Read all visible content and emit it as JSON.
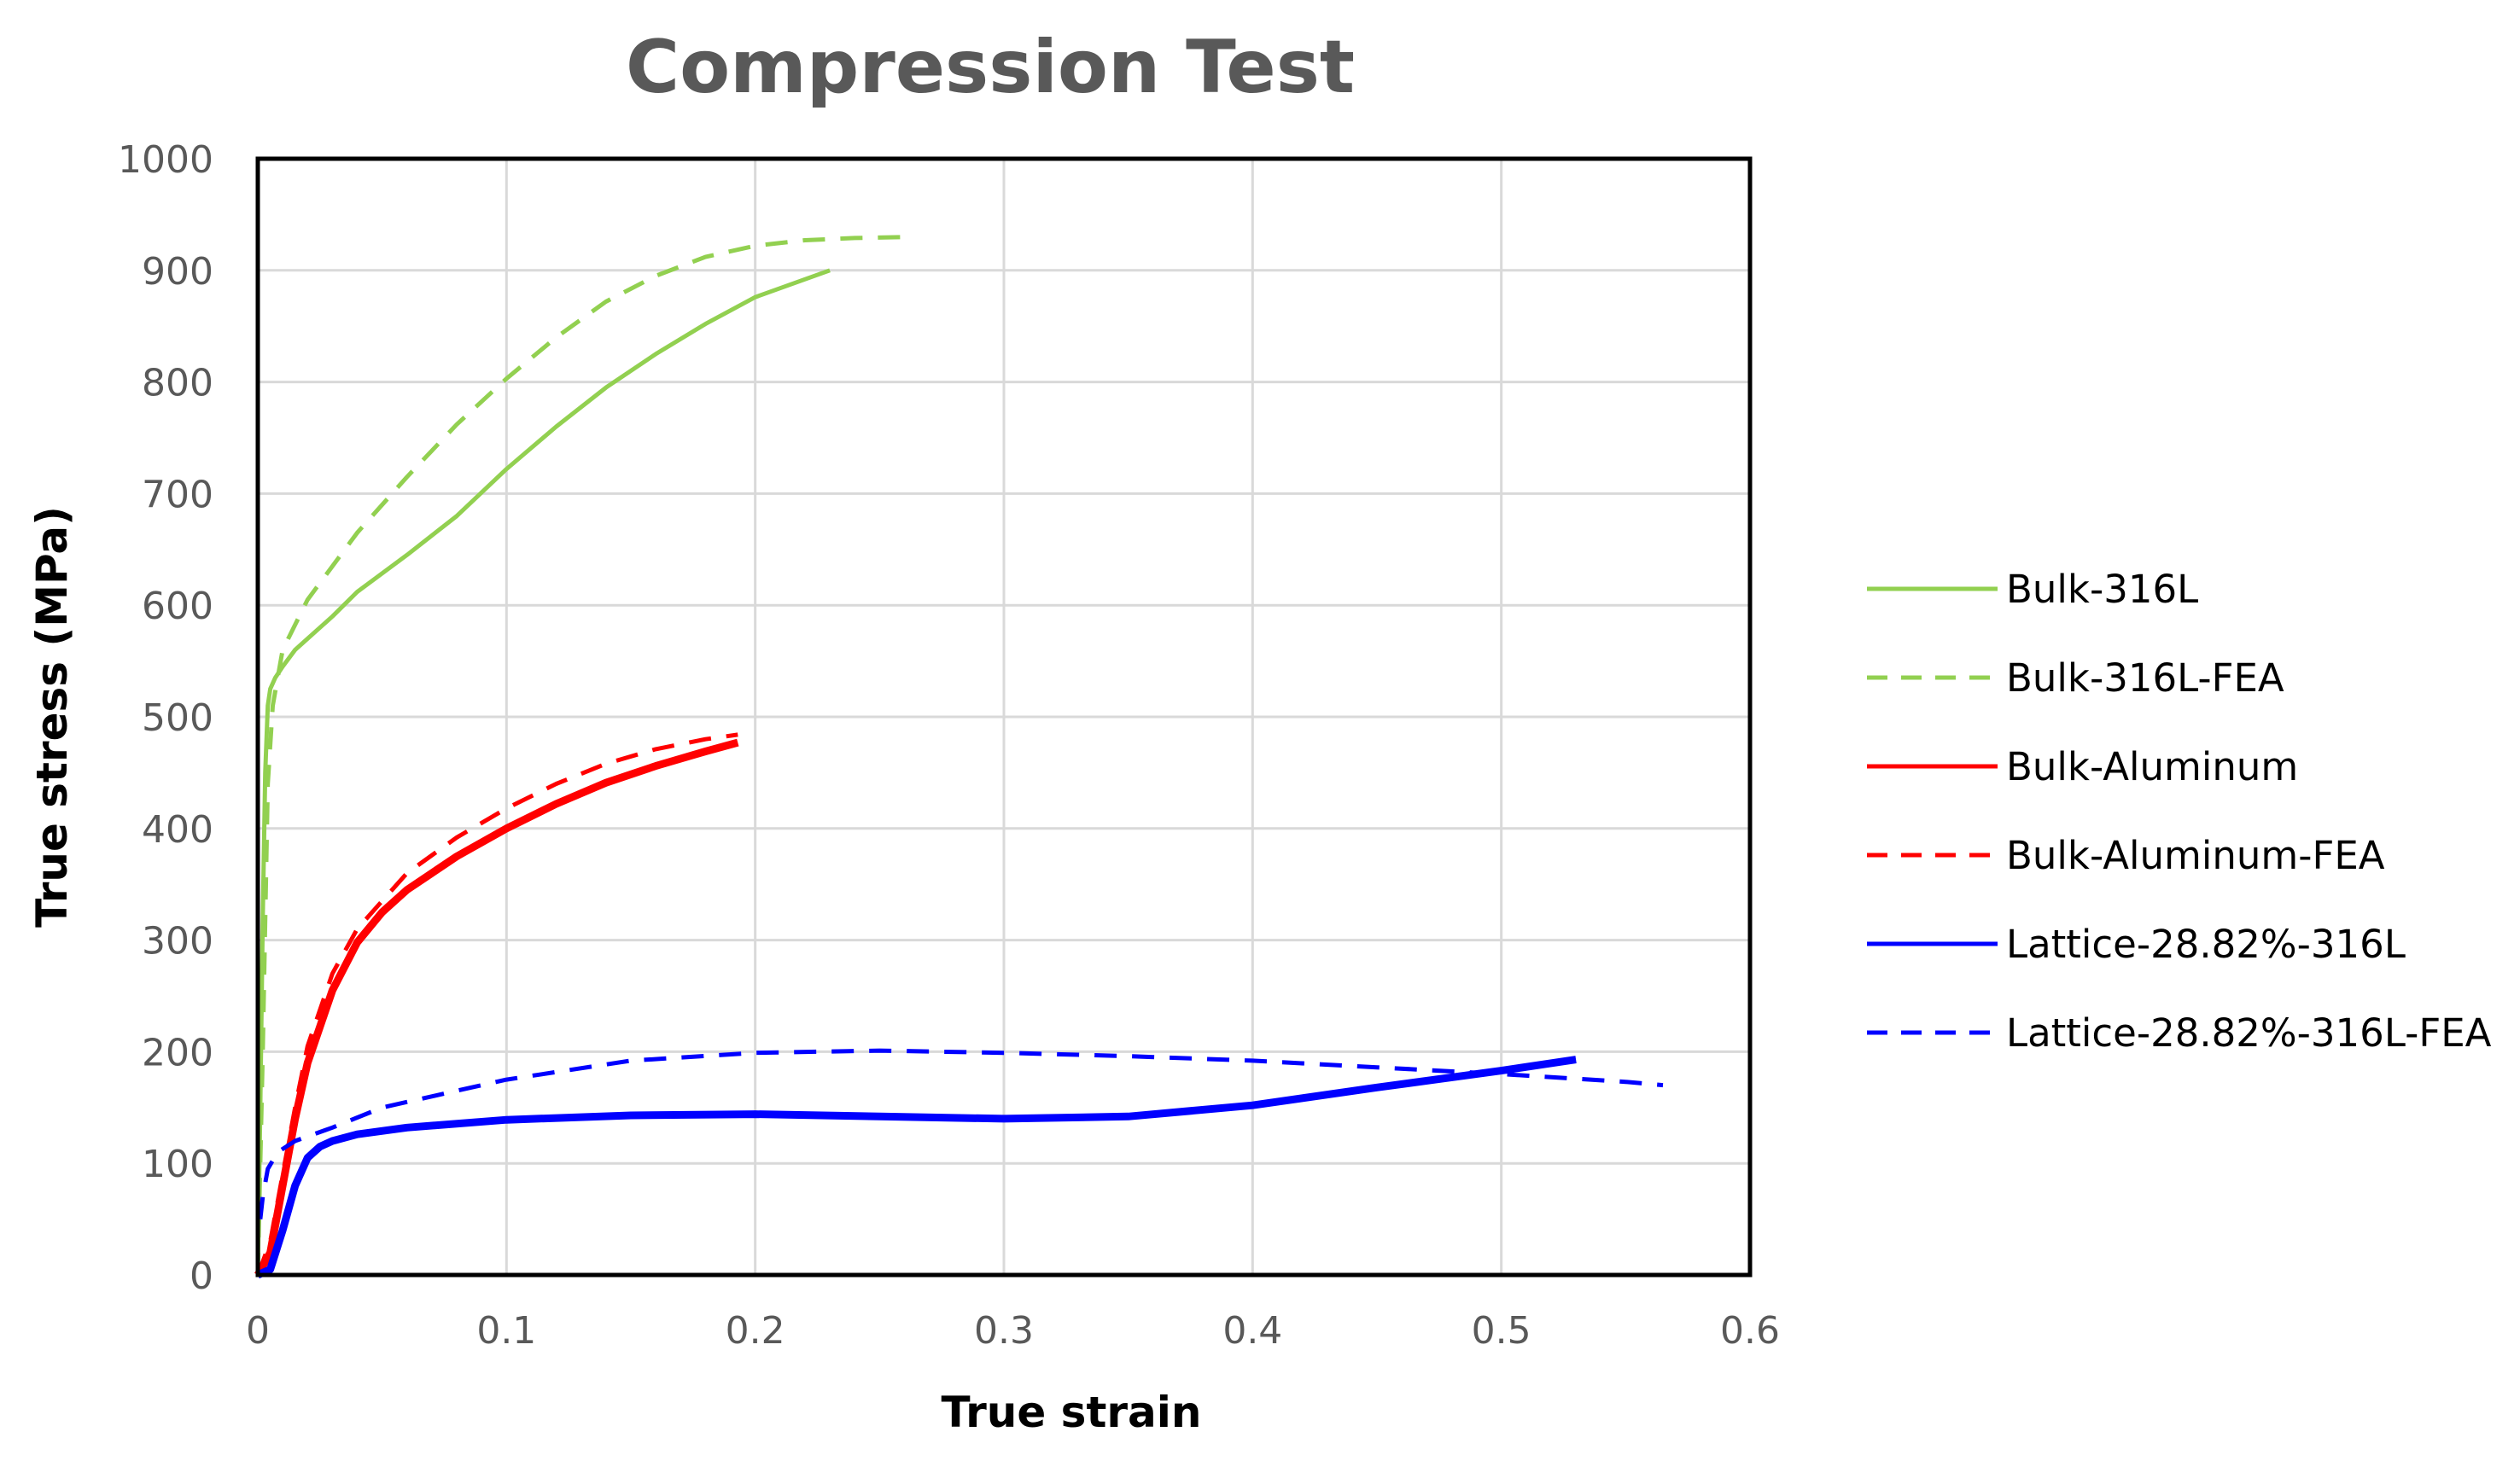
{
  "chart_data": {
    "type": "line",
    "title": "Compression Test",
    "xlabel": "True strain",
    "ylabel": "True stress (MPa)",
    "xlim": [
      0,
      0.6
    ],
    "ylim": [
      0,
      1000
    ],
    "x_ticks": [
      0,
      0.1,
      0.2,
      0.3,
      0.4,
      0.5,
      0.6
    ],
    "x_tick_labels": [
      "0",
      "0.1",
      "0.2",
      "0.3",
      "0.4",
      "0.5",
      "0.6"
    ],
    "y_ticks": [
      0,
      100,
      200,
      300,
      400,
      500,
      600,
      700,
      800,
      900,
      1000
    ],
    "y_tick_labels": [
      "0",
      "100",
      "200",
      "300",
      "400",
      "500",
      "600",
      "700",
      "800",
      "900",
      "1000"
    ],
    "grid": true,
    "legend_position": "right",
    "series": [
      {
        "name": "Bulk-316L",
        "color": "#92d050",
        "dash": "solid",
        "width": "normal",
        "x": [
          0,
          0.001,
          0.002,
          0.003,
          0.004,
          0.005,
          0.007,
          0.01,
          0.015,
          0.02,
          0.03,
          0.04,
          0.06,
          0.08,
          0.1,
          0.12,
          0.14,
          0.16,
          0.18,
          0.2,
          0.23
        ],
        "y": [
          0,
          150,
          320,
          450,
          510,
          525,
          535,
          545,
          560,
          570,
          590,
          612,
          645,
          680,
          722,
          760,
          795,
          825,
          852,
          876,
          900
        ]
      },
      {
        "name": "Bulk-316L-FEA",
        "color": "#92d050",
        "dash": "dashed",
        "width": "normal",
        "x": [
          0,
          0.002,
          0.004,
          0.006,
          0.01,
          0.02,
          0.04,
          0.06,
          0.08,
          0.1,
          0.12,
          0.14,
          0.16,
          0.18,
          0.2,
          0.22,
          0.24,
          0.262
        ],
        "y": [
          0,
          200,
          440,
          510,
          560,
          605,
          665,
          715,
          762,
          803,
          840,
          872,
          895,
          912,
          922,
          927,
          929,
          930
        ]
      },
      {
        "name": "Bulk-Aluminum",
        "color": "#ff0000",
        "dash": "solid",
        "width": "thick",
        "x": [
          0,
          0.005,
          0.01,
          0.015,
          0.02,
          0.03,
          0.04,
          0.05,
          0.06,
          0.08,
          0.1,
          0.12,
          0.14,
          0.16,
          0.18,
          0.193
        ],
        "y": [
          0,
          20,
          80,
          140,
          190,
          255,
          298,
          325,
          345,
          375,
          400,
          422,
          441,
          456,
          469,
          477
        ]
      },
      {
        "name": "Bulk-Aluminum-FEA",
        "color": "#ff0000",
        "dash": "dashed",
        "width": "normal",
        "x": [
          0,
          0.005,
          0.01,
          0.015,
          0.02,
          0.03,
          0.04,
          0.06,
          0.08,
          0.1,
          0.12,
          0.14,
          0.16,
          0.18,
          0.193
        ],
        "y": [
          0,
          30,
          90,
          150,
          205,
          270,
          310,
          360,
          392,
          418,
          440,
          458,
          471,
          480,
          484
        ]
      },
      {
        "name": "Lattice-28.82%-316L",
        "color": "#0000ff",
        "dash": "solid",
        "width": "thick",
        "x": [
          0,
          0.005,
          0.01,
          0.015,
          0.02,
          0.025,
          0.03,
          0.04,
          0.06,
          0.1,
          0.15,
          0.2,
          0.25,
          0.3,
          0.35,
          0.4,
          0.45,
          0.5,
          0.53
        ],
        "y": [
          0,
          5,
          40,
          80,
          105,
          115,
          120,
          126,
          132,
          139,
          143,
          144,
          142,
          140,
          142,
          152,
          168,
          183,
          193
        ]
      },
      {
        "name": "Lattice-28.82%-316L-FEA",
        "color": "#0000ff",
        "dash": "dashed",
        "width": "normal",
        "x": [
          0.001,
          0.002,
          0.004,
          0.008,
          0.015,
          0.03,
          0.05,
          0.1,
          0.15,
          0.2,
          0.25,
          0.3,
          0.35,
          0.4,
          0.45,
          0.5,
          0.55,
          0.565
        ],
        "y": [
          50,
          70,
          95,
          110,
          120,
          132,
          150,
          175,
          192,
          199,
          201,
          199,
          196,
          192,
          186,
          180,
          173,
          170
        ]
      }
    ]
  }
}
